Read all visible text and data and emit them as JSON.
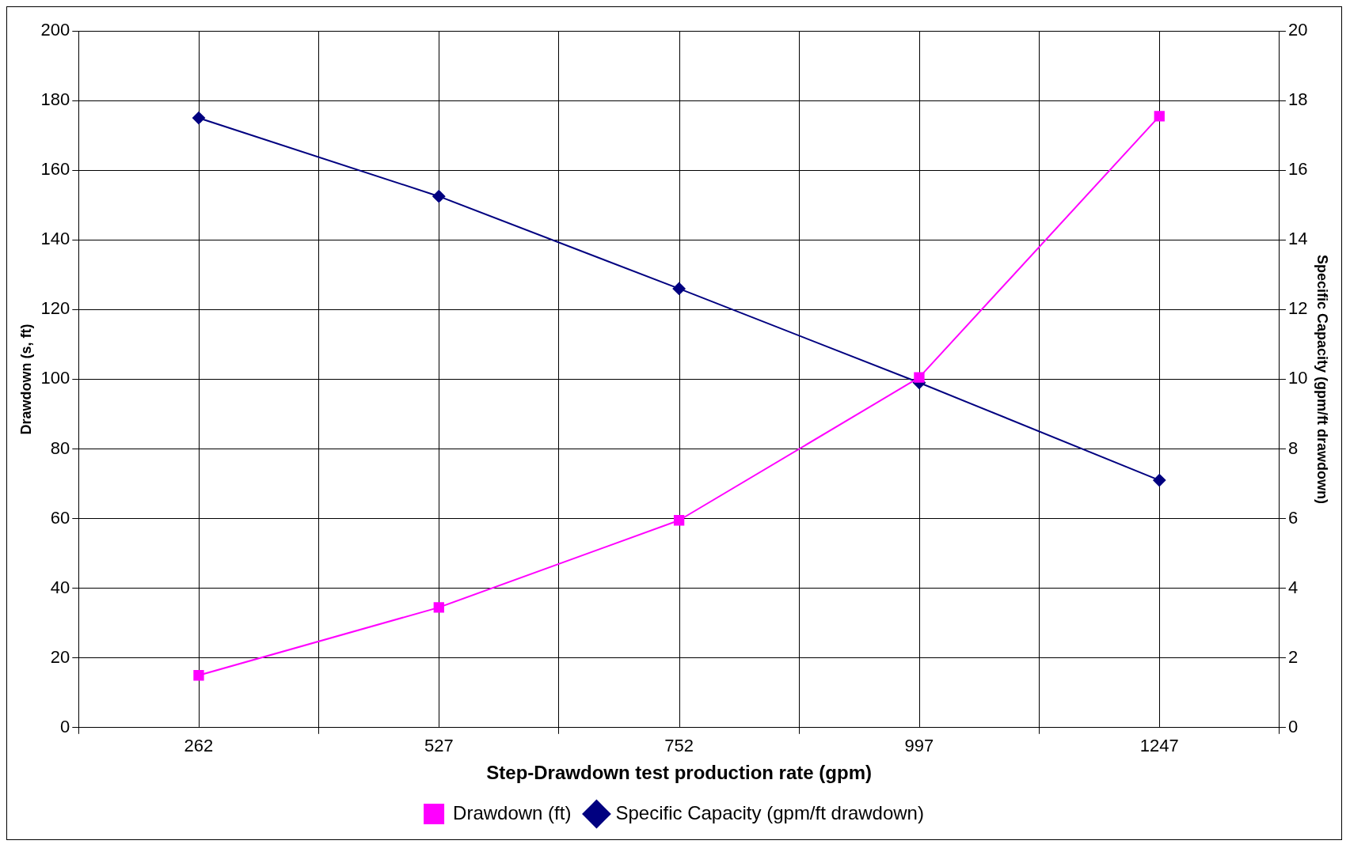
{
  "chart_data": {
    "type": "line",
    "xlabel": "Step-Drawdown test production rate (gpm)",
    "ylabel": "Drawdown (s, ft)",
    "y2label": "Specific Capacity (gpm/ft drawdown)",
    "categories": [
      "262",
      "527",
      "752",
      "997",
      "1247"
    ],
    "series": [
      {
        "name": "Drawdown (ft)",
        "color": "#ff00ff",
        "marker": "square",
        "values": [
          15,
          34.5,
          59.5,
          100.5,
          175.5
        ]
      },
      {
        "name": "Specific Capacity (gpm/ft drawdown)",
        "color": "#000080",
        "marker": "diamond",
        "axis": "y2",
        "values": [
          17.5,
          15.25,
          12.6,
          9.9,
          7.1
        ]
      }
    ],
    "ylim": [
      0,
      200
    ],
    "yticks": [
      0,
      20,
      40,
      60,
      80,
      100,
      120,
      140,
      160,
      180,
      200
    ],
    "y2lim": [
      0,
      20
    ],
    "y2ticks": [
      0,
      2,
      4,
      6,
      8,
      10,
      12,
      14,
      16,
      18,
      20
    ],
    "grid": true,
    "legend": "bottom",
    "line_style": "solid"
  }
}
